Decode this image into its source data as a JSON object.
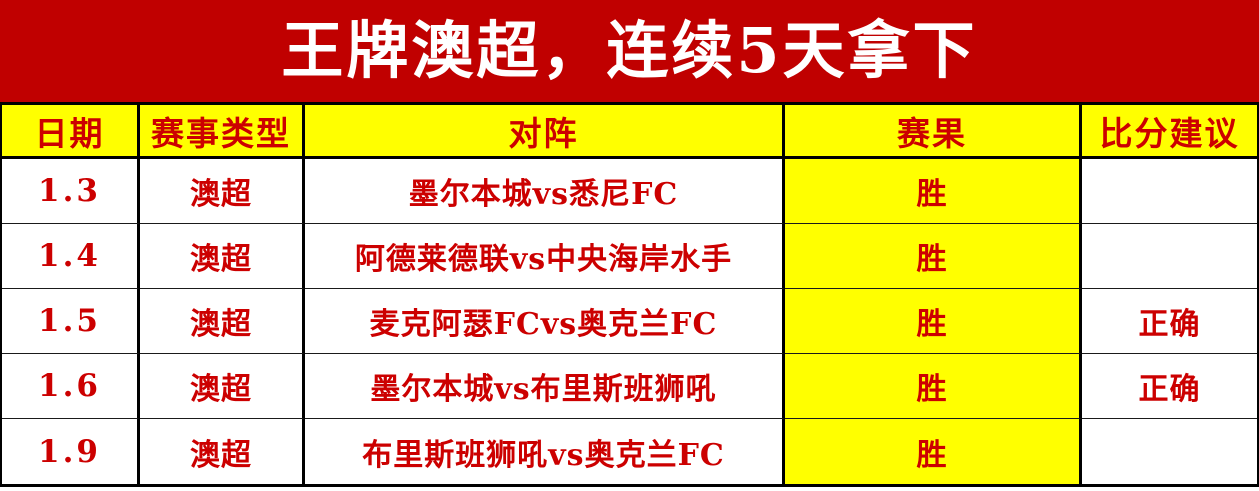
{
  "banner": {
    "title": "王牌澳超，连续5天拿下"
  },
  "table": {
    "headers": [
      "日期",
      "赛事类型",
      "对阵",
      "赛果",
      "比分建议"
    ],
    "rows": [
      {
        "date": "1.3",
        "league": "澳超",
        "match": "墨尔本城vs悉尼FC",
        "result": "胜",
        "advice": ""
      },
      {
        "date": "1.4",
        "league": "澳超",
        "match": "阿德莱德联vs中央海岸水手",
        "result": "胜",
        "advice": ""
      },
      {
        "date": "1.5",
        "league": "澳超",
        "match": "麦克阿瑟FCvs奥克兰FC",
        "result": "胜",
        "advice": "正确"
      },
      {
        "date": "1.6",
        "league": "澳超",
        "match": "墨尔本城vs布里斯班狮吼",
        "result": "胜",
        "advice": "正确"
      },
      {
        "date": "1.9",
        "league": "澳超",
        "match": "布里斯班狮吼vs奥克兰FC",
        "result": "胜",
        "advice": ""
      }
    ]
  },
  "colors": {
    "banner_bg": "#C00000",
    "banner_text": "#FFFFFF",
    "header_bg": "#FFFF00",
    "result_cell_bg": "#FFFF00",
    "text_red": "#CC0000",
    "grid_line": "#000000"
  }
}
